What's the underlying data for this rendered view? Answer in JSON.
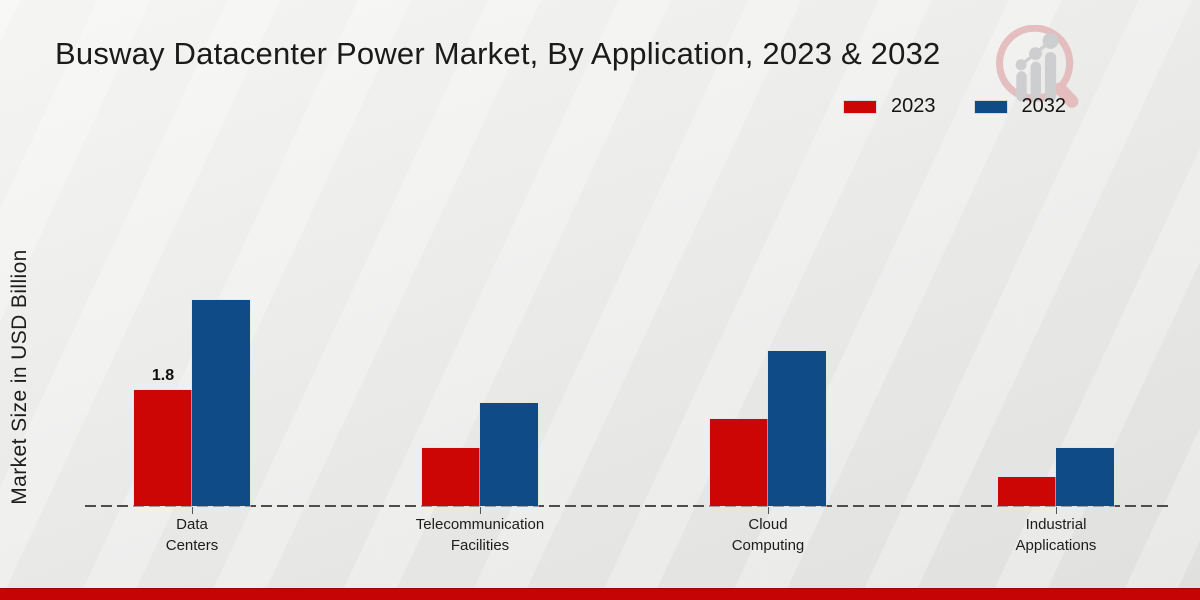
{
  "title": "Busway Datacenter Power Market, By Application, 2023 & 2032",
  "y_axis_label": "Market Size in USD Billion",
  "footer_color": "#c50505",
  "logo": {
    "name": "magnifier-growth-chart-logo",
    "ring_color": "#e3b7b8",
    "bars_color": "#c8c9cb"
  },
  "chart_data": {
    "type": "bar",
    "title": "Busway Datacenter Power Market, By Application, 2023 & 2032",
    "xlabel": "",
    "ylabel": "Market Size in USD Billion",
    "categories": [
      "Data Centers",
      "Telecommunication Facilities",
      "Cloud Computing",
      "Industrial Applications"
    ],
    "category_lines": [
      [
        "Data",
        "Centers"
      ],
      [
        "Telecommunication",
        "Facilities"
      ],
      [
        "Cloud",
        "Computing"
      ],
      [
        "Industrial",
        "Applications"
      ]
    ],
    "series": [
      {
        "name": "2023",
        "color": "#cc0505",
        "values": [
          1.8,
          0.9,
          1.35,
          0.45
        ],
        "value_labels": [
          "1.8",
          "",
          "",
          ""
        ]
      },
      {
        "name": "2032",
        "color": "#0f4c87",
        "values": [
          3.2,
          1.6,
          2.4,
          0.9
        ],
        "value_labels": [
          "",
          "",
          "",
          ""
        ]
      }
    ],
    "ylim": [
      0,
      3.6
    ],
    "grid": false,
    "y_axis_ticks_visible": false,
    "baseline_style": "dashed",
    "legend_position": "top-right"
  }
}
